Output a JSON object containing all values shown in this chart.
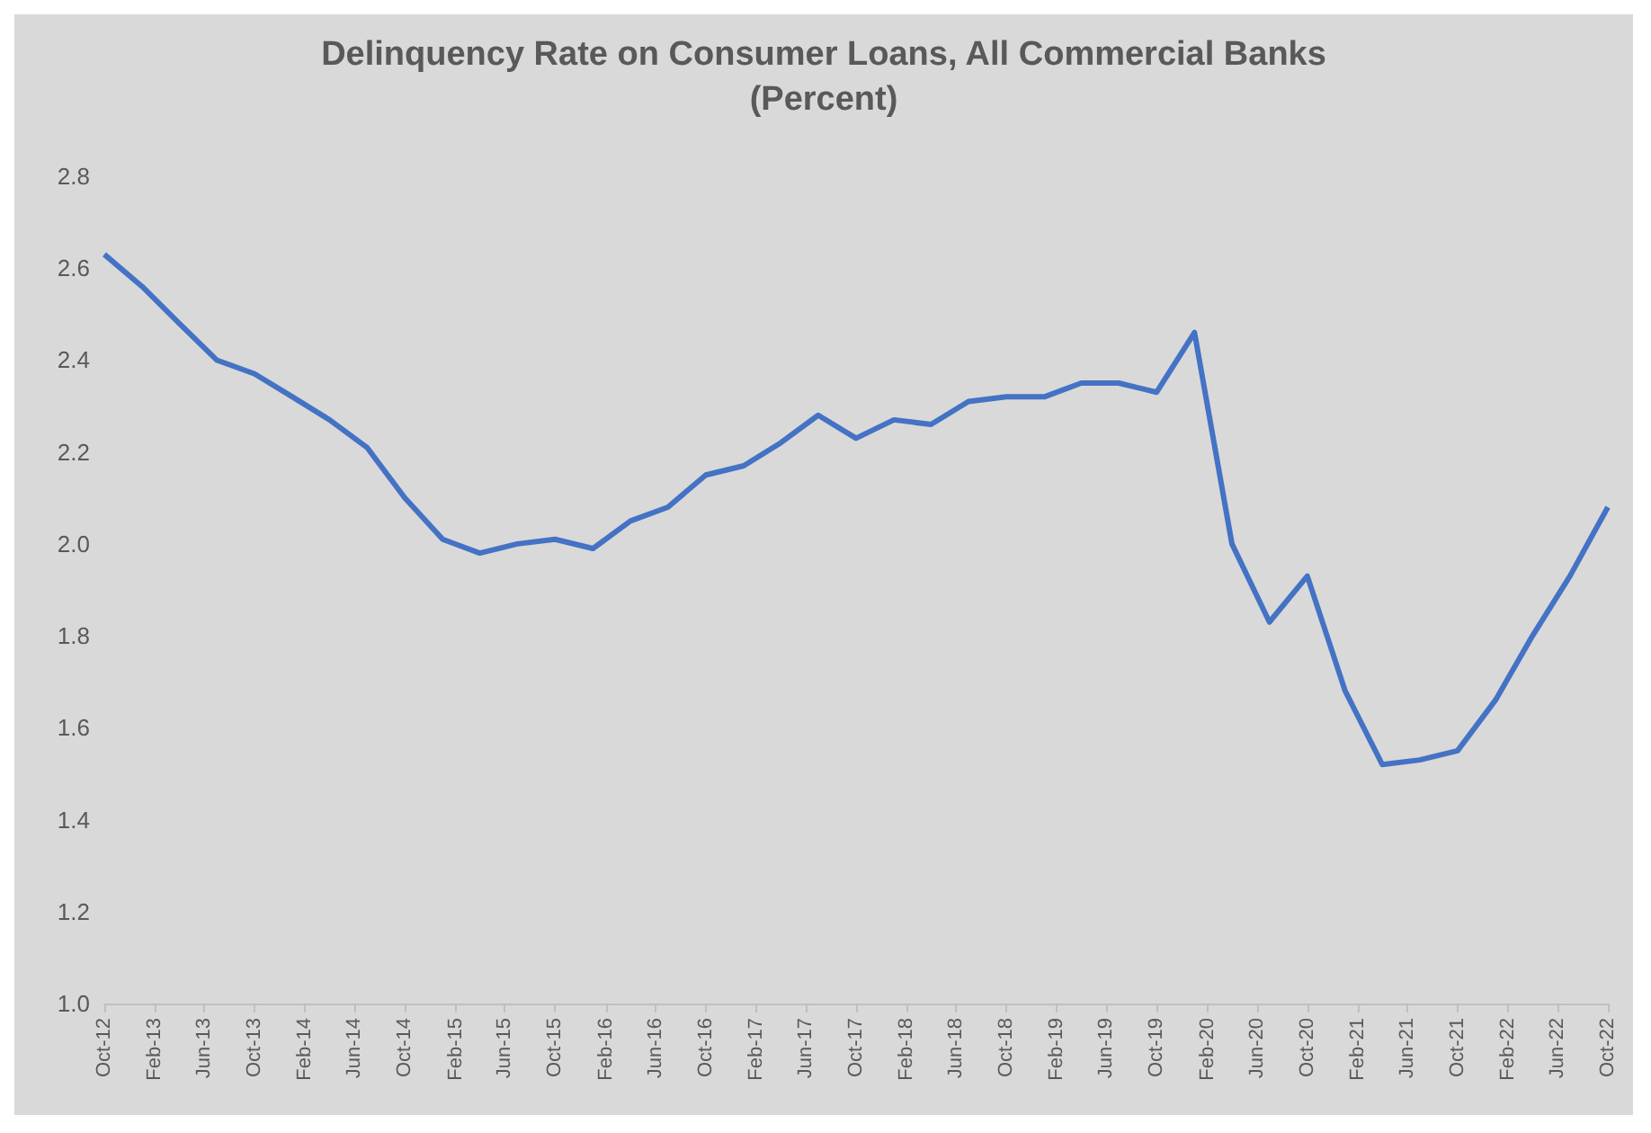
{
  "chart_data": {
    "type": "line",
    "title": "Delinquency Rate on Consumer Loans, All Commercial Banks",
    "subtitle": "(Percent)",
    "x": [
      "2012-10",
      "2013-01",
      "2013-04",
      "2013-07",
      "2013-10",
      "2014-01",
      "2014-04",
      "2014-07",
      "2014-10",
      "2015-01",
      "2015-04",
      "2015-07",
      "2015-10",
      "2016-01",
      "2016-04",
      "2016-07",
      "2016-10",
      "2017-01",
      "2017-04",
      "2017-07",
      "2017-10",
      "2018-01",
      "2018-04",
      "2018-07",
      "2018-10",
      "2019-01",
      "2019-04",
      "2019-07",
      "2019-10",
      "2020-01",
      "2020-04",
      "2020-07",
      "2020-10",
      "2021-01",
      "2021-04",
      "2021-07",
      "2021-10",
      "2022-01",
      "2022-04",
      "2022-07",
      "2022-10"
    ],
    "series": [
      {
        "color": "#4472c4",
        "values": [
          2.63,
          2.56,
          2.48,
          2.4,
          2.37,
          2.32,
          2.27,
          2.21,
          2.1,
          2.01,
          1.98,
          2.0,
          2.01,
          1.99,
          2.05,
          2.08,
          2.15,
          2.17,
          2.22,
          2.28,
          2.23,
          2.27,
          2.26,
          2.31,
          2.32,
          2.32,
          2.35,
          2.35,
          2.33,
          2.46,
          2.0,
          1.83,
          1.93,
          1.68,
          1.52,
          1.53,
          1.55,
          1.66,
          1.8,
          1.93,
          2.08
        ]
      }
    ],
    "xlim": [
      "2012-10",
      "2022-10"
    ],
    "xticks": [
      {
        "value": "2012-10",
        "label": "Oct-12"
      },
      {
        "value": "2013-02",
        "label": "Feb-13"
      },
      {
        "value": "2013-06",
        "label": "Jun-13"
      },
      {
        "value": "2013-10",
        "label": "Oct-13"
      },
      {
        "value": "2014-02",
        "label": "Feb-14"
      },
      {
        "value": "2014-06",
        "label": "Jun-14"
      },
      {
        "value": "2014-10",
        "label": "Oct-14"
      },
      {
        "value": "2015-02",
        "label": "Feb-15"
      },
      {
        "value": "2015-06",
        "label": "Jun-15"
      },
      {
        "value": "2015-10",
        "label": "Oct-15"
      },
      {
        "value": "2016-02",
        "label": "Feb-16"
      },
      {
        "value": "2016-06",
        "label": "Jun-16"
      },
      {
        "value": "2016-10",
        "label": "Oct-16"
      },
      {
        "value": "2017-02",
        "label": "Feb-17"
      },
      {
        "value": "2017-06",
        "label": "Jun-17"
      },
      {
        "value": "2017-10",
        "label": "Oct-17"
      },
      {
        "value": "2018-02",
        "label": "Feb-18"
      },
      {
        "value": "2018-06",
        "label": "Jun-18"
      },
      {
        "value": "2018-10",
        "label": "Oct-18"
      },
      {
        "value": "2019-02",
        "label": "Feb-19"
      },
      {
        "value": "2019-06",
        "label": "Jun-19"
      },
      {
        "value": "2019-10",
        "label": "Oct-19"
      },
      {
        "value": "2020-02",
        "label": "Feb-20"
      },
      {
        "value": "2020-06",
        "label": "Jun-20"
      },
      {
        "value": "2020-10",
        "label": "Oct-20"
      },
      {
        "value": "2021-02",
        "label": "Feb-21"
      },
      {
        "value": "2021-06",
        "label": "Jun-21"
      },
      {
        "value": "2021-10",
        "label": "Oct-21"
      },
      {
        "value": "2022-02",
        "label": "Feb-22"
      },
      {
        "value": "2022-06",
        "label": "Jun-22"
      },
      {
        "value": "2022-10",
        "label": "Oct-22"
      }
    ],
    "ylim": [
      1.0,
      2.8
    ],
    "yticks": [
      {
        "value": 1.0,
        "label": "1.0"
      },
      {
        "value": 1.2,
        "label": "1.2"
      },
      {
        "value": 1.4,
        "label": "1.4"
      },
      {
        "value": 1.6,
        "label": "1.6"
      },
      {
        "value": 1.8,
        "label": "1.8"
      },
      {
        "value": 2.0,
        "label": "2.0"
      },
      {
        "value": 2.2,
        "label": "2.2"
      },
      {
        "value": 2.4,
        "label": "2.4"
      },
      {
        "value": 2.6,
        "label": "2.6"
      },
      {
        "value": 2.8,
        "label": "2.8"
      }
    ],
    "grid": false
  }
}
